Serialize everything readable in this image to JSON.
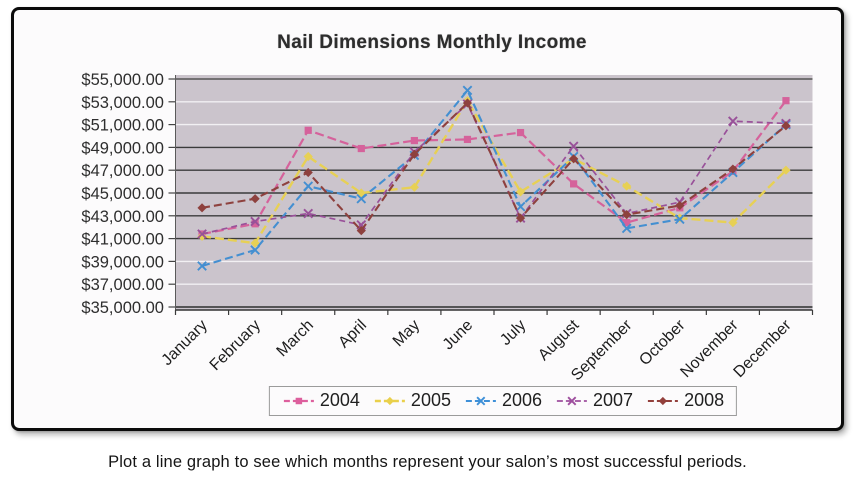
{
  "caption": "Plot a line graph to see which months represent your salon’s most successful periods.",
  "chart_data": {
    "type": "line",
    "title": "Nail Dimensions Monthly Income",
    "xlabel": "",
    "ylabel": "",
    "grid": "horizontal",
    "legend_position": "bottom",
    "plot_bg": "#cbc4cd",
    "axis": {
      "y_min": 35000,
      "y_max": 55000,
      "y_step": 2000
    },
    "y_ticks": [
      {
        "value": 55000,
        "label": "$55,000.00",
        "line": "#555555"
      },
      {
        "value": 53000,
        "label": "$53,000.00",
        "line": "#f2f0f3"
      },
      {
        "value": 51000,
        "label": "$51,000.00",
        "line": "#f2f0f3"
      },
      {
        "value": 49000,
        "label": "$49,000.00",
        "line": "#3b3b3b"
      },
      {
        "value": 47000,
        "label": "$47,000.00",
        "line": "#3b3b3b"
      },
      {
        "value": 45000,
        "label": "$45,000.00",
        "line": "#3b3b3b"
      },
      {
        "value": 43000,
        "label": "$43,000.00",
        "line": "#3b3b3b"
      },
      {
        "value": 41000,
        "label": "$41,000.00",
        "line": "#3b3b3b"
      },
      {
        "value": 39000,
        "label": "$39,000.00",
        "line": "#f2f0f3"
      },
      {
        "value": 37000,
        "label": "$37,000.00",
        "line": "#f2f0f3"
      },
      {
        "value": 35000,
        "label": "$35,000.00",
        "line": "#2e2e2e"
      }
    ],
    "categories": [
      "January",
      "February",
      "March",
      "April",
      "May",
      "June",
      "July",
      "August",
      "September",
      "October",
      "November",
      "December"
    ],
    "series": [
      {
        "name": "2004",
        "color": "#dd5f9d",
        "marker": "square",
        "values": [
          41400,
          42300,
          50500,
          48900,
          49600,
          49700,
          50300,
          45800,
          42400,
          43700,
          46900,
          53100
        ]
      },
      {
        "name": "2005",
        "color": "#e9d04b",
        "marker": "diamond",
        "values": [
          41200,
          40600,
          48200,
          45000,
          45500,
          53100,
          45100,
          48000,
          45600,
          42800,
          42400,
          47000
        ]
      },
      {
        "name": "2006",
        "color": "#3e90d8",
        "marker": "x",
        "values": [
          38600,
          40000,
          45600,
          44500,
          48300,
          54000,
          43800,
          48200,
          41900,
          42700,
          46800,
          51000
        ]
      },
      {
        "name": "2007",
        "color": "#9e4f9e",
        "marker": "x",
        "values": [
          41400,
          42500,
          43200,
          42200,
          48600,
          52800,
          42800,
          49100,
          43200,
          44200,
          51300,
          51100
        ]
      },
      {
        "name": "2008",
        "color": "#93403c",
        "marker": "diamond",
        "values": [
          43700,
          44500,
          46800,
          41700,
          48400,
          52900,
          42800,
          48000,
          43100,
          43900,
          47100,
          50900
        ]
      }
    ]
  }
}
